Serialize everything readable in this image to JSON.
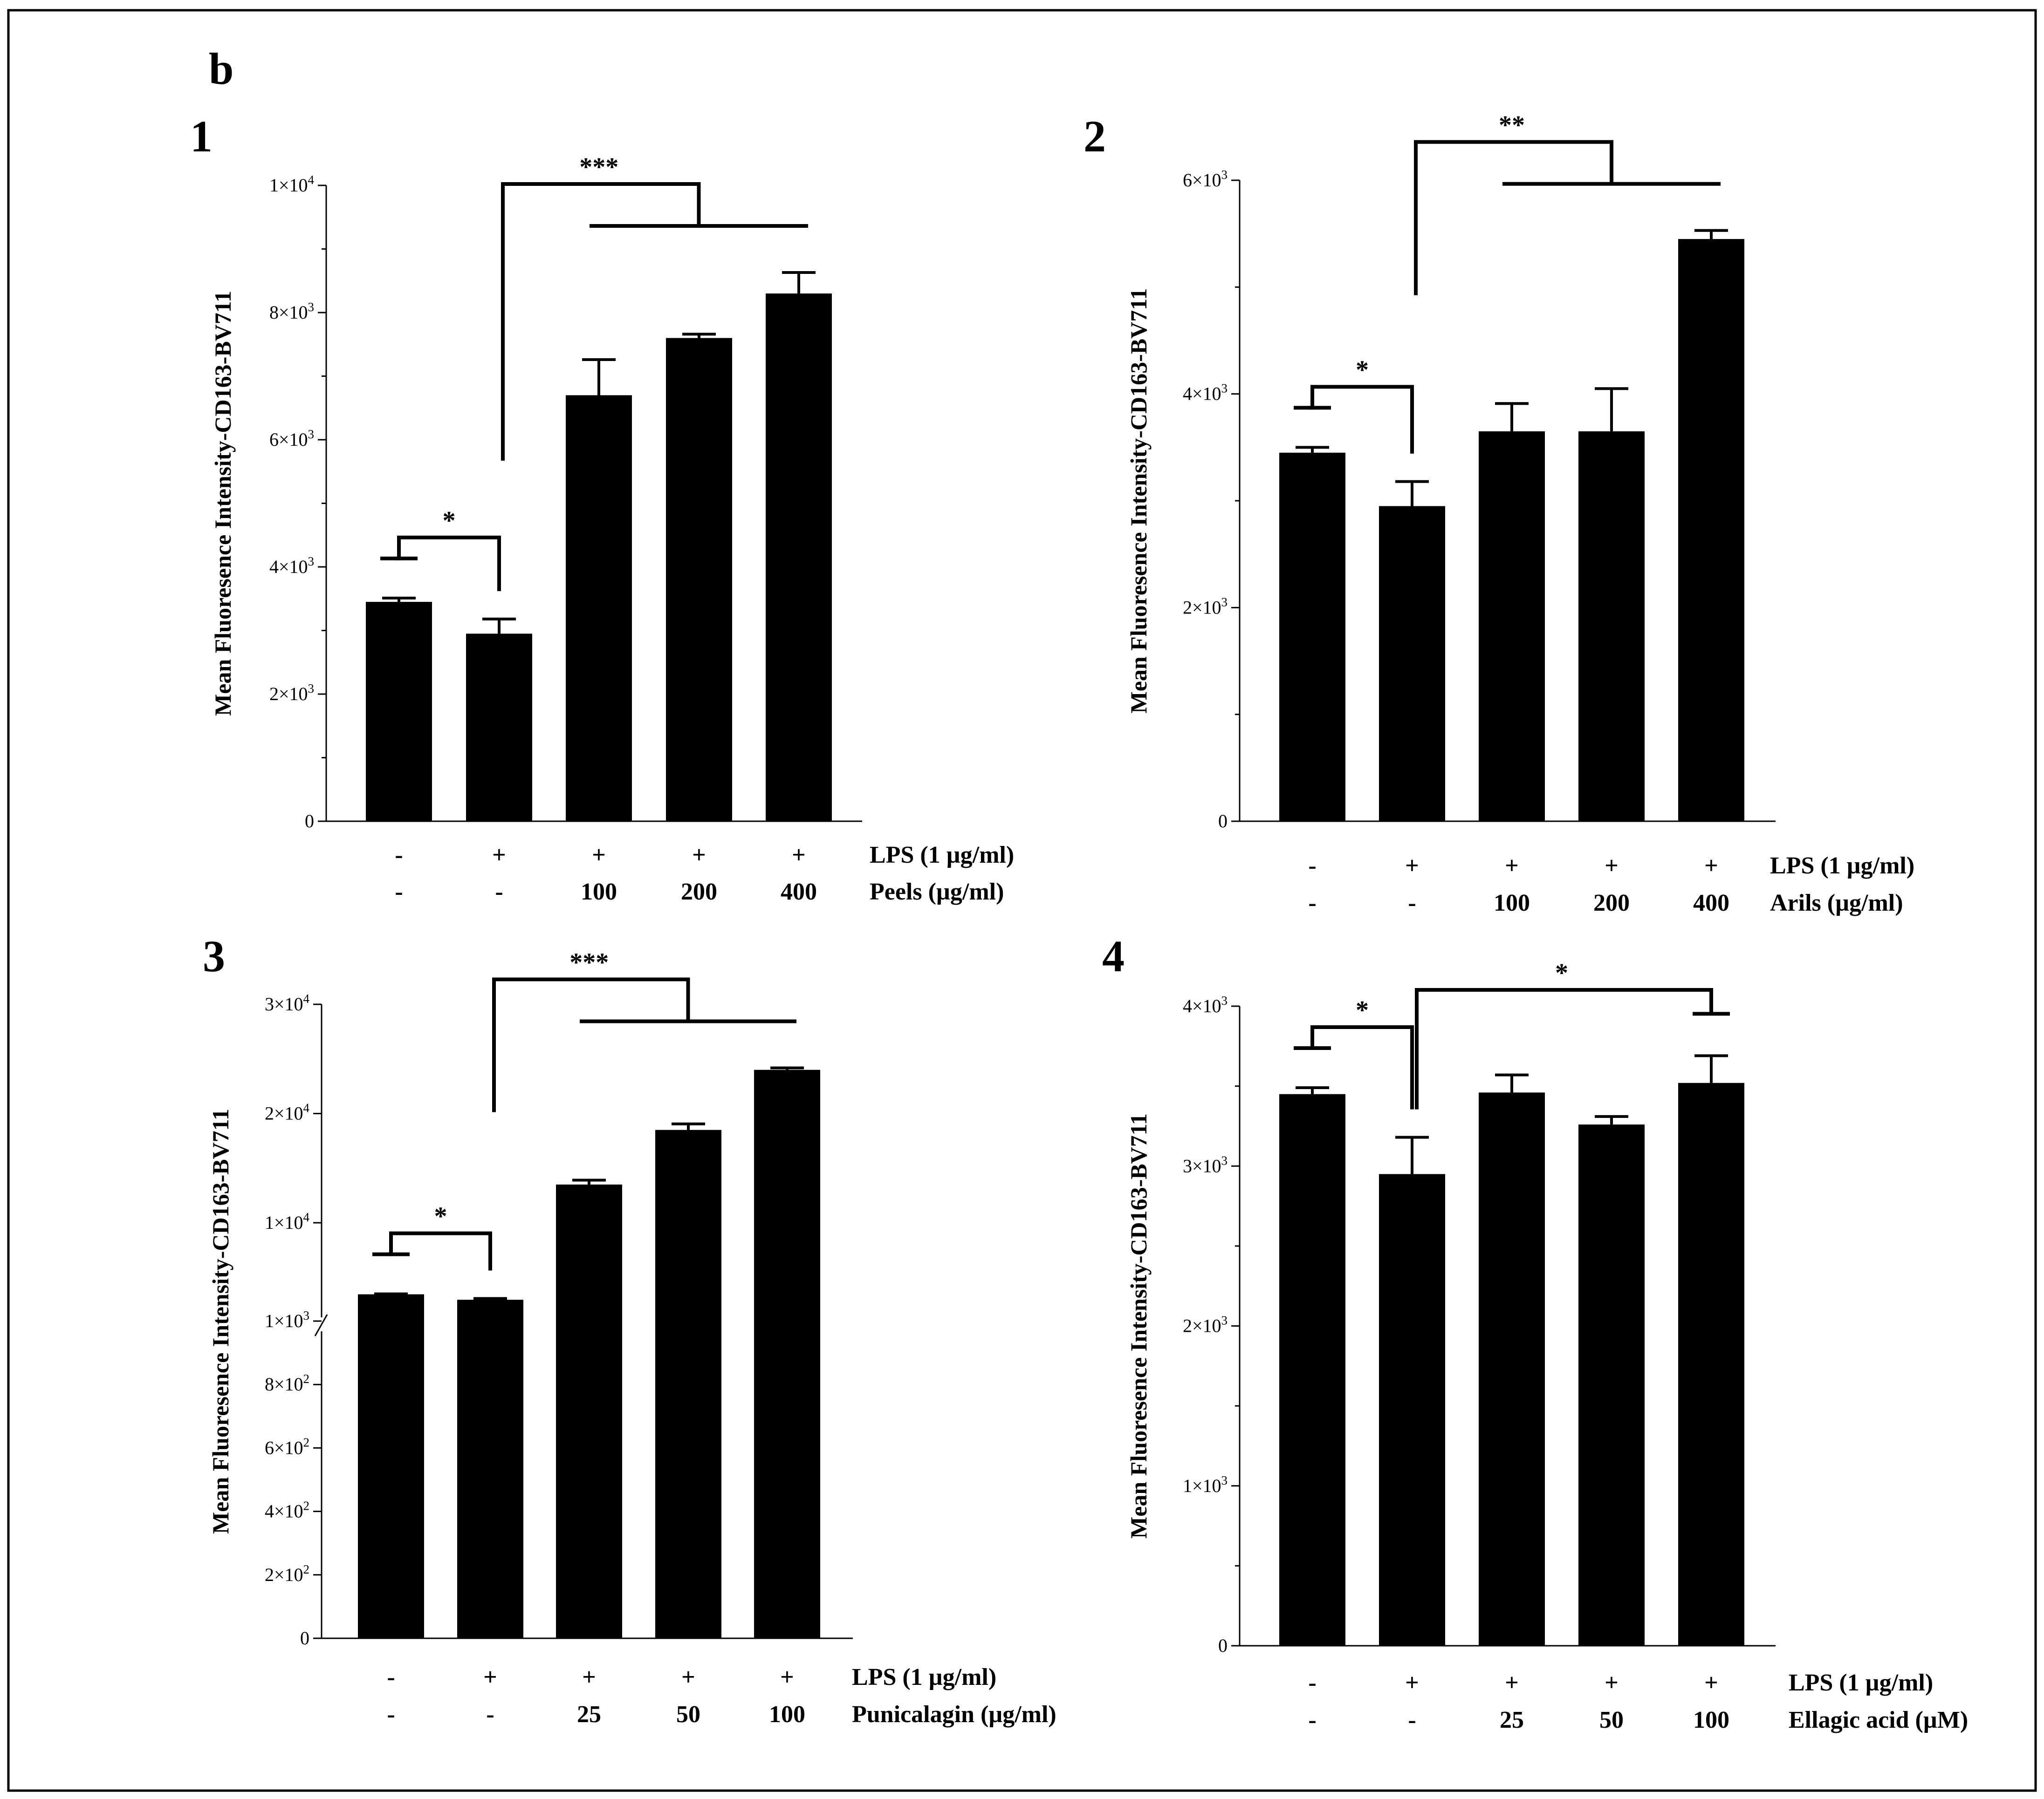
{
  "figure_letter": "b",
  "colors": {
    "bar": "#000000",
    "background": "#ffffff",
    "frame": "#000000"
  },
  "chart_data": [
    {
      "type": "bar",
      "panel": "1",
      "ylabel": "Mean Fluoresence Intensity-CD163-BV711",
      "ylim": [
        0,
        10000
      ],
      "ticks": [
        {
          "value": 0,
          "label": "0",
          "sup": ""
        },
        {
          "value": 2000,
          "label": "2×10",
          "sup": "3"
        },
        {
          "value": 4000,
          "label": "4×10",
          "sup": "3"
        },
        {
          "value": 6000,
          "label": "6×10",
          "sup": "3"
        },
        {
          "value": 8000,
          "label": "8×10",
          "sup": "3"
        },
        {
          "value": 10000,
          "label": "1×10",
          "sup": "4"
        }
      ],
      "values": [
        3450,
        2950,
        6700,
        7600,
        8300
      ],
      "errors": [
        60,
        230,
        560,
        60,
        330
      ],
      "row1": {
        "label": "LPS  (1 µg/ml)",
        "values": [
          "-",
          "+",
          "+",
          "+",
          "+"
        ]
      },
      "row2": {
        "label": "Peels (µg/ml)",
        "values": [
          "-",
          "-",
          "100",
          "200",
          "400"
        ]
      },
      "significance": [
        {
          "label": "*",
          "from": 0,
          "to": 1
        },
        {
          "label": "***",
          "from": 1,
          "to_range": [
            2,
            4
          ]
        }
      ]
    },
    {
      "type": "bar",
      "panel": "2",
      "ylabel": "Mean Fluoresence Intensity-CD163-BV711",
      "ylim": [
        0,
        6000
      ],
      "ticks": [
        {
          "value": 0,
          "label": "0",
          "sup": ""
        },
        {
          "value": 2000,
          "label": "2×10",
          "sup": "3"
        },
        {
          "value": 4000,
          "label": "4×10",
          "sup": "3"
        },
        {
          "value": 6000,
          "label": "6×10",
          "sup": "3"
        }
      ],
      "values": [
        3450,
        2950,
        3650,
        3650,
        5450
      ],
      "errors": [
        50,
        230,
        260,
        400,
        80
      ],
      "row1": {
        "label": "LPS  (1 µg/ml)",
        "values": [
          "-",
          "+",
          "+",
          "+",
          "+"
        ]
      },
      "row2": {
        "label": "Arils (µg/ml)",
        "values": [
          "-",
          "-",
          "100",
          "200",
          "400"
        ]
      },
      "significance": [
        {
          "label": "*",
          "from": 0,
          "to": 1
        },
        {
          "label": "**",
          "from": 1,
          "to_range": [
            2,
            4
          ]
        }
      ]
    },
    {
      "type": "bar",
      "panel": "3",
      "ylabel": "Mean Fluoresence Intensity-CD163-BV711",
      "axis_break": true,
      "ticks": [
        {
          "value": 0,
          "label": "0",
          "sup": ""
        },
        {
          "value": 200,
          "label": "2×10",
          "sup": "2"
        },
        {
          "value": 400,
          "label": "4×10",
          "sup": "2"
        },
        {
          "value": 600,
          "label": "6×10",
          "sup": "2"
        },
        {
          "value": 800,
          "label": "8×10",
          "sup": "2"
        },
        {
          "value": 1000,
          "label": "1×10",
          "sup": "3"
        },
        {
          "value": 10000,
          "label": "1×10",
          "sup": "4"
        },
        {
          "value": 20000,
          "label": "2×10",
          "sup": "4"
        },
        {
          "value": 30000,
          "label": "3×10",
          "sup": "4"
        }
      ],
      "values": [
        3450,
        2950,
        13500,
        18500,
        24000
      ],
      "errors": [
        40,
        120,
        400,
        550,
        180
      ],
      "row1": {
        "label": "LPS  (1 µg/ml)",
        "values": [
          "-",
          "+",
          "+",
          "+",
          "+"
        ]
      },
      "row2": {
        "label": "Punicalagin (µg/ml)",
        "values": [
          "-",
          "-",
          "25",
          "50",
          "100"
        ]
      },
      "significance": [
        {
          "label": "*",
          "from": 0,
          "to": 1
        },
        {
          "label": "***",
          "from": 1,
          "to_range": [
            2,
            4
          ]
        }
      ]
    },
    {
      "type": "bar",
      "panel": "4",
      "ylabel": "Mean Fluoresence Intensity-CD163-BV711",
      "ylim": [
        0,
        4000
      ],
      "ticks": [
        {
          "value": 0,
          "label": "0",
          "sup": ""
        },
        {
          "value": 1000,
          "label": "1×10",
          "sup": "3"
        },
        {
          "value": 2000,
          "label": "2×10",
          "sup": "3"
        },
        {
          "value": 3000,
          "label": "3×10",
          "sup": "3"
        },
        {
          "value": 4000,
          "label": "4×10",
          "sup": "3"
        }
      ],
      "values": [
        3450,
        2950,
        3460,
        3260,
        3520
      ],
      "errors": [
        40,
        230,
        110,
        50,
        170
      ],
      "row1": {
        "label": "LPS  (1 µg/ml)",
        "values": [
          "-",
          "+",
          "+",
          "+",
          "+"
        ]
      },
      "row2": {
        "label": "Ellagic acid (µM)",
        "values": [
          "-",
          "-",
          "25",
          "50",
          "100"
        ]
      },
      "significance": [
        {
          "label": "*",
          "from": 0,
          "to": 1
        },
        {
          "label": "*",
          "from": 1,
          "to": 4
        }
      ]
    }
  ]
}
